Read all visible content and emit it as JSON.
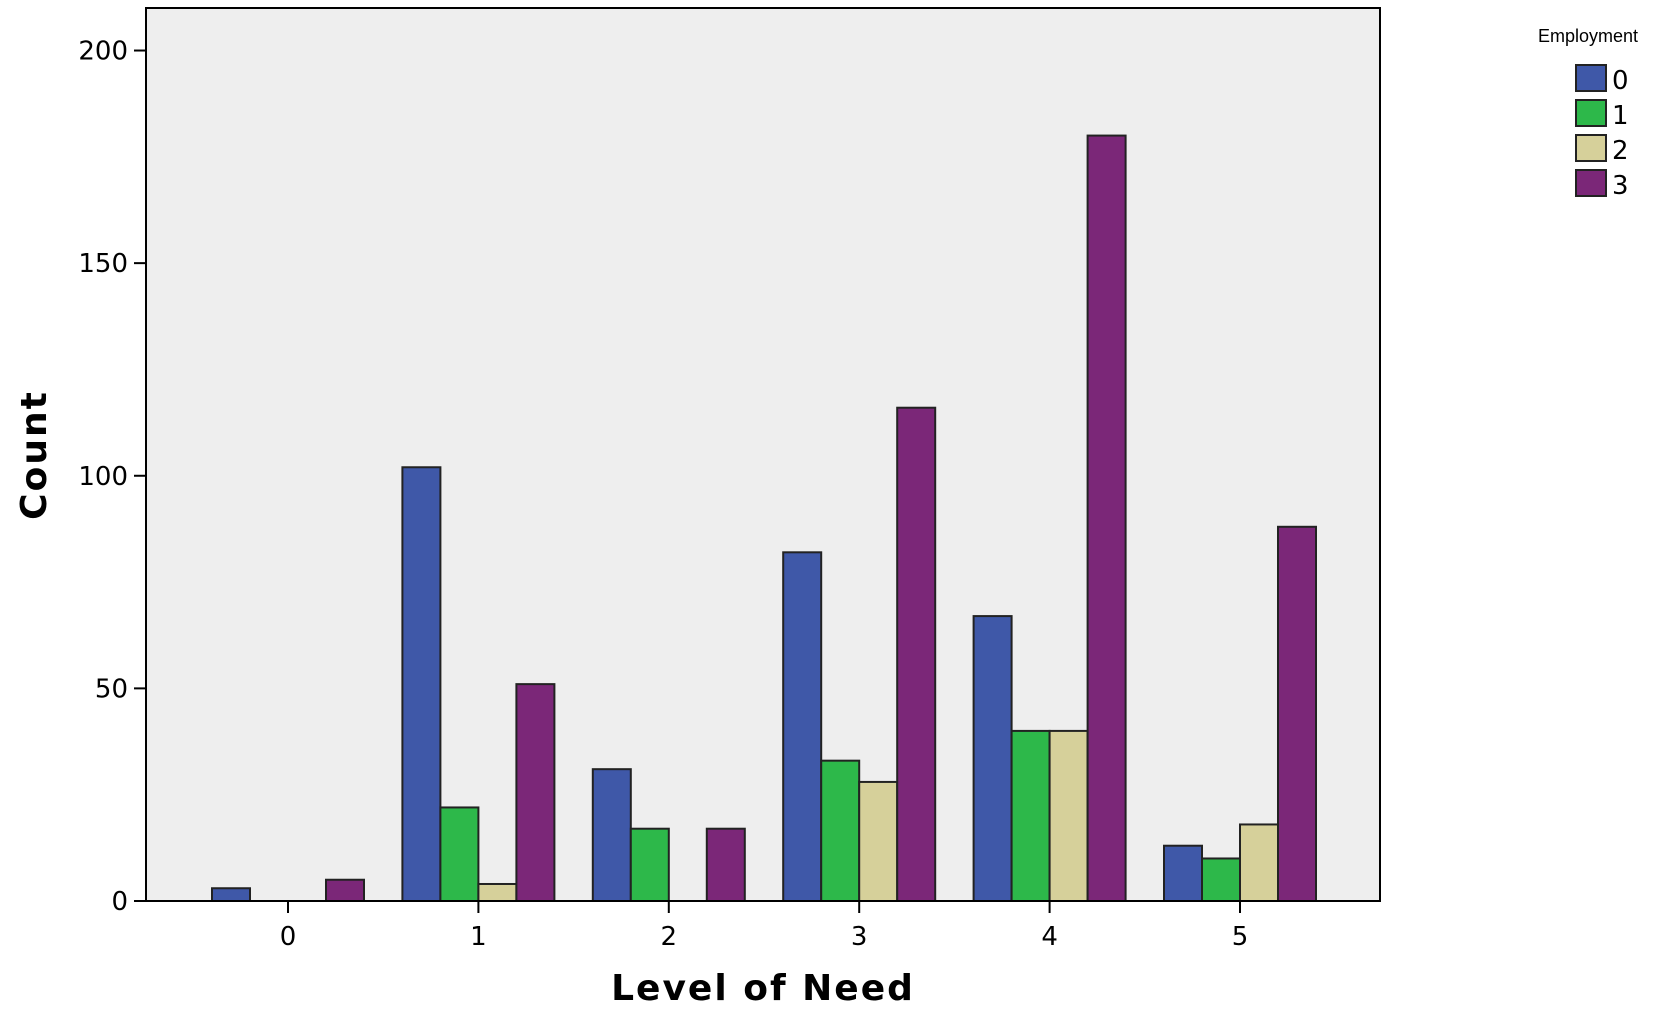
{
  "chart_data": {
    "type": "bar",
    "xlabel": "Level of Need",
    "ylabel": "Count",
    "categories": [
      "0",
      "1",
      "2",
      "3",
      "4",
      "5"
    ],
    "ylim": [
      0,
      210
    ],
    "yticks": [
      0,
      50,
      100,
      150,
      200
    ],
    "grid": false,
    "legend": {
      "title": "Employment",
      "position": "top-right"
    },
    "series": [
      {
        "name": "0",
        "color": "#3f58a8",
        "values": [
          3,
          102,
          31,
          82,
          67,
          13
        ]
      },
      {
        "name": "1",
        "color": "#2db84a",
        "values": [
          0,
          22,
          17,
          33,
          40,
          10
        ]
      },
      {
        "name": "2",
        "color": "#d6d09a",
        "values": [
          0,
          4,
          0,
          28,
          40,
          18
        ]
      },
      {
        "name": "3",
        "color": "#7b2778",
        "values": [
          5,
          51,
          17,
          116,
          180,
          88
        ]
      }
    ],
    "plot_background": "#eeeeee"
  }
}
